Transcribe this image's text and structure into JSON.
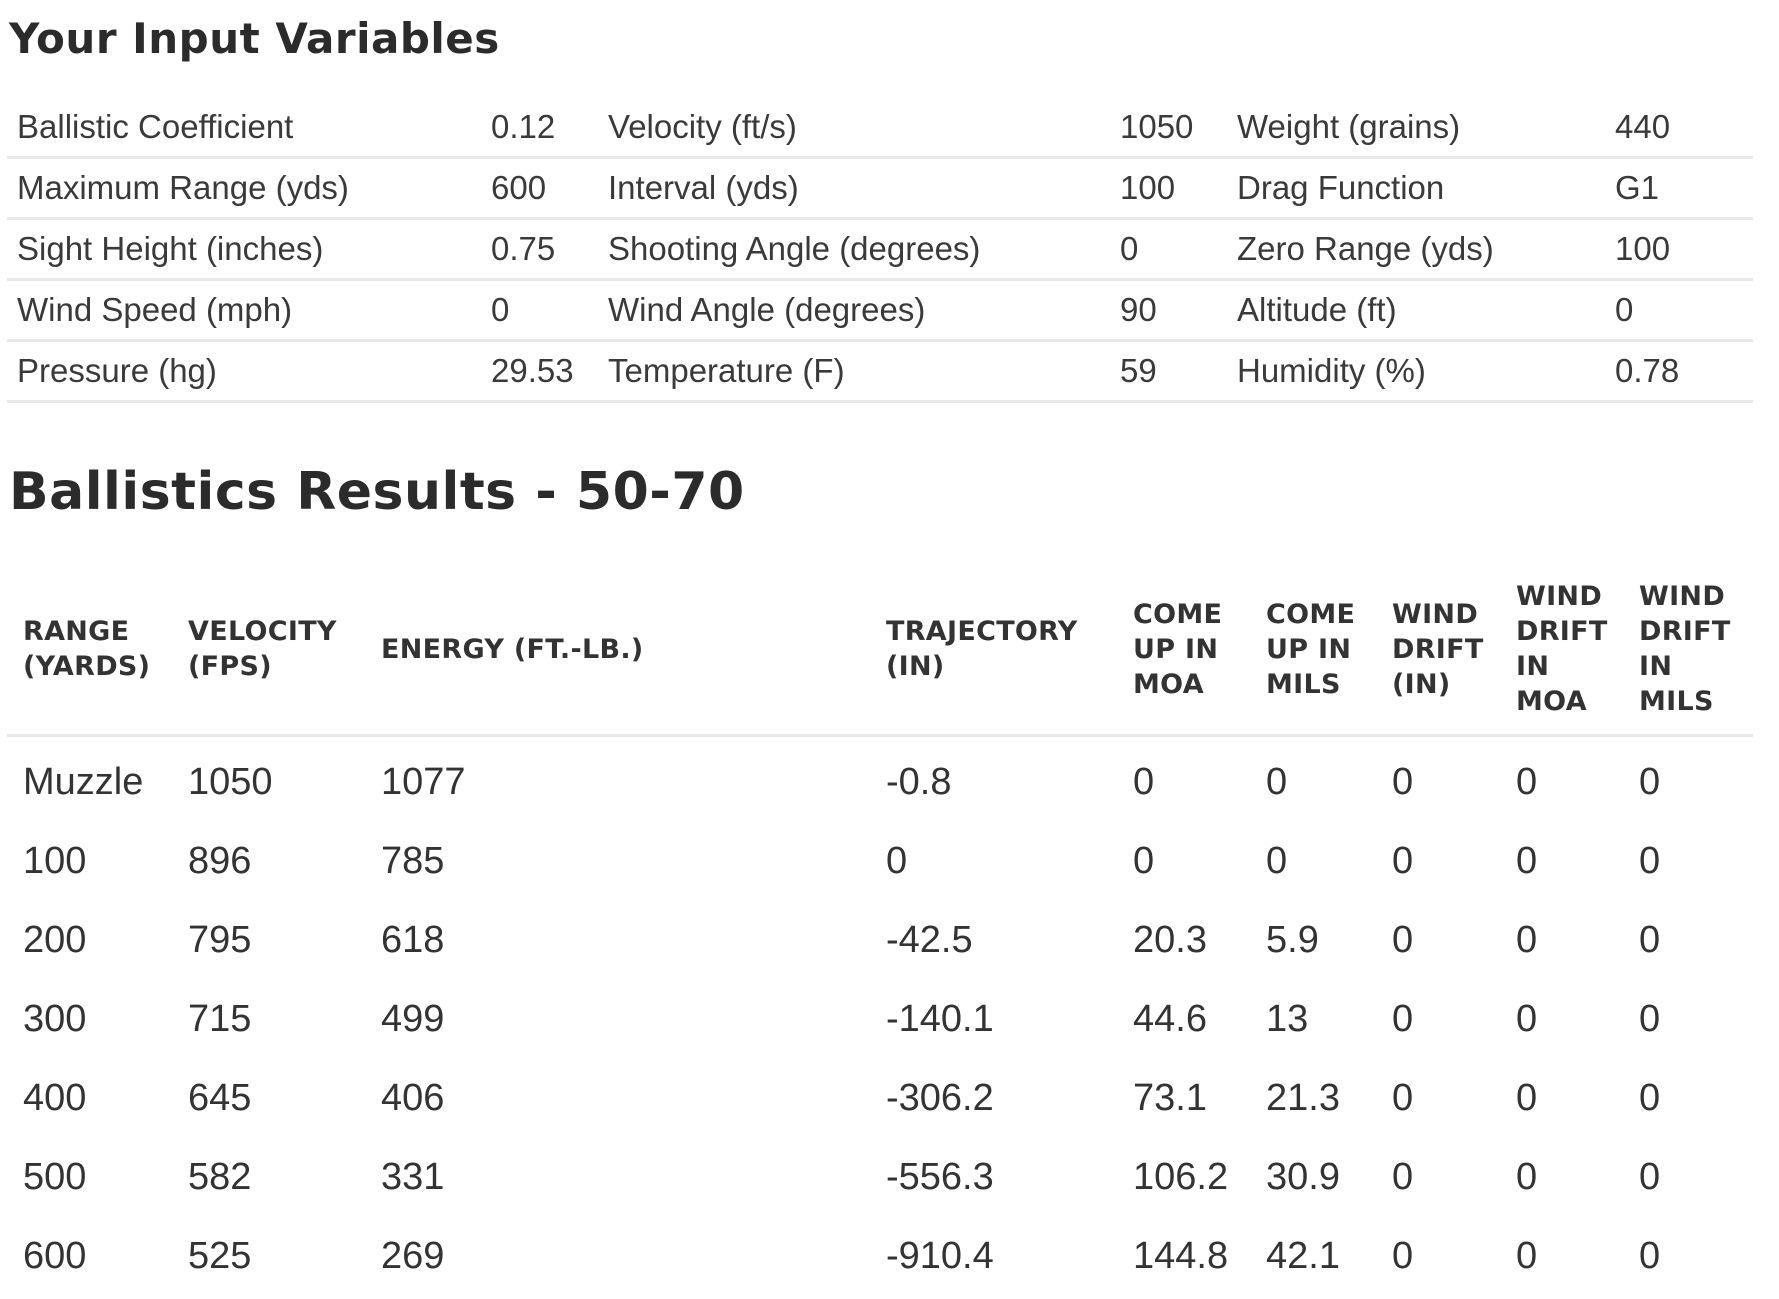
{
  "inputs_section": {
    "title": "Your Input Variables",
    "rows": [
      [
        {
          "label": "Ballistic Coefficient",
          "value": "0.12"
        },
        {
          "label": "Velocity (ft/s)",
          "value": "1050"
        },
        {
          "label": "Weight (grains)",
          "value": "440"
        }
      ],
      [
        {
          "label": "Maximum Range (yds)",
          "value": "600"
        },
        {
          "label": "Interval (yds)",
          "value": "100"
        },
        {
          "label": "Drag Function",
          "value": "G1"
        }
      ],
      [
        {
          "label": "Sight Height (inches)",
          "value": "0.75"
        },
        {
          "label": "Shooting Angle (degrees)",
          "value": "0"
        },
        {
          "label": "Zero Range (yds)",
          "value": "100"
        }
      ],
      [
        {
          "label": "Wind Speed (mph)",
          "value": "0"
        },
        {
          "label": "Wind Angle (degrees)",
          "value": "90"
        },
        {
          "label": "Altitude (ft)",
          "value": "0"
        }
      ],
      [
        {
          "label": "Pressure (hg)",
          "value": "29.53"
        },
        {
          "label": "Temperature (F)",
          "value": "59"
        },
        {
          "label": "Humidity (%)",
          "value": "0.78"
        }
      ]
    ]
  },
  "results_section": {
    "title": "Ballistics Results - 50-70",
    "headers": [
      [
        "RANGE",
        "(YARDS)"
      ],
      [
        "VELOCITY",
        "(FPS)"
      ],
      [
        "ENERGY (FT.-LB.)"
      ],
      [
        "TRAJECTORY",
        "(IN)"
      ],
      [
        "COME",
        "UP IN",
        "MOA"
      ],
      [
        "COME",
        "UP IN",
        "MILS"
      ],
      [
        "WIND",
        "DRIFT",
        "(IN)"
      ],
      [
        "WIND",
        "DRIFT",
        "IN",
        "MOA"
      ],
      [
        "WIND",
        "DRIFT",
        "IN",
        "MILS"
      ]
    ],
    "rows": [
      [
        "Muzzle",
        "1050",
        "1077",
        "-0.8",
        "0",
        "0",
        "0",
        "0",
        "0"
      ],
      [
        "100",
        "896",
        "785",
        "0",
        "0",
        "0",
        "0",
        "0",
        "0"
      ],
      [
        "200",
        "795",
        "618",
        "-42.5",
        "20.3",
        "5.9",
        "0",
        "0",
        "0"
      ],
      [
        "300",
        "715",
        "499",
        "-140.1",
        "44.6",
        "13",
        "0",
        "0",
        "0"
      ],
      [
        "400",
        "645",
        "406",
        "-306.2",
        "73.1",
        "21.3",
        "0",
        "0",
        "0"
      ],
      [
        "500",
        "582",
        "331",
        "-556.3",
        "106.2",
        "30.9",
        "0",
        "0",
        "0"
      ],
      [
        "600",
        "525",
        "269",
        "-910.4",
        "144.8",
        "42.1",
        "0",
        "0",
        "0"
      ]
    ]
  }
}
